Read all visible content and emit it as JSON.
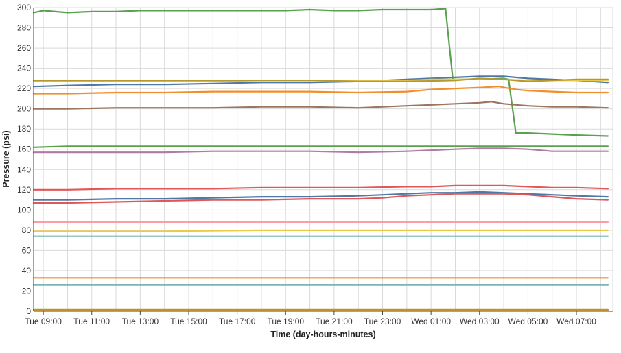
{
  "chart_data": {
    "type": "line",
    "title": "",
    "xlabel": "Time (day-hours-minutes)",
    "ylabel": "Pressure (psi)",
    "x_unit": "hours (Tue 09:00 = 9, Wed 01:00 = 25)",
    "xlim": [
      8.6,
      32.5
    ],
    "ylim": [
      0,
      300
    ],
    "y_ticks": [
      0,
      20,
      40,
      60,
      80,
      100,
      120,
      140,
      160,
      180,
      200,
      220,
      240,
      260,
      280,
      300
    ],
    "x_ticks": [
      {
        "value": 9,
        "label": "Tue 09:00"
      },
      {
        "value": 11,
        "label": "Tue 11:00"
      },
      {
        "value": 13,
        "label": "Tue 13:00"
      },
      {
        "value": 15,
        "label": "Tue 15:00"
      },
      {
        "value": 17,
        "label": "Tue 17:00"
      },
      {
        "value": 19,
        "label": "Tue 19:00"
      },
      {
        "value": 21,
        "label": "Tue 21:00"
      },
      {
        "value": 23,
        "label": "Tue 23:00"
      },
      {
        "value": 25,
        "label": "Wed 01:00"
      },
      {
        "value": 27,
        "label": "Wed 03:00"
      },
      {
        "value": 29,
        "label": "Wed 05:00"
      },
      {
        "value": 31,
        "label": "Wed 07:00"
      }
    ],
    "grid": true,
    "legend": "none",
    "series": [
      {
        "color": "#59a14f",
        "points": [
          [
            8.6,
            295
          ],
          [
            9,
            297
          ],
          [
            10,
            295
          ],
          [
            11,
            296
          ],
          [
            12,
            296
          ],
          [
            13,
            297
          ],
          [
            14,
            297
          ],
          [
            15,
            297
          ],
          [
            16,
            297
          ],
          [
            17,
            297
          ],
          [
            18,
            297
          ],
          [
            19,
            297
          ],
          [
            20,
            298
          ],
          [
            21,
            297
          ],
          [
            22,
            297
          ],
          [
            23,
            298
          ],
          [
            24,
            298
          ],
          [
            25,
            298
          ],
          [
            25.6,
            299
          ],
          [
            25.9,
            229
          ],
          [
            27,
            229
          ],
          [
            28,
            230
          ],
          [
            28.2,
            229
          ],
          [
            28.5,
            176
          ],
          [
            29,
            176
          ],
          [
            30,
            175
          ],
          [
            31,
            174
          ],
          [
            32.3,
            173
          ]
        ]
      },
      {
        "color": "#59a14f",
        "points": [
          [
            8.6,
            162
          ],
          [
            10,
            163
          ],
          [
            12,
            163
          ],
          [
            14,
            163
          ],
          [
            16,
            163
          ],
          [
            18,
            163
          ],
          [
            20,
            163
          ],
          [
            22,
            163
          ],
          [
            24,
            163
          ],
          [
            26,
            163
          ],
          [
            28,
            163
          ],
          [
            30,
            163
          ],
          [
            32.3,
            163
          ]
        ]
      },
      {
        "color": "#4e79a7",
        "points": [
          [
            8.6,
            222
          ],
          [
            10,
            223
          ],
          [
            12,
            224
          ],
          [
            14,
            224
          ],
          [
            16,
            225
          ],
          [
            18,
            226
          ],
          [
            20,
            226
          ],
          [
            22,
            227
          ],
          [
            23,
            228
          ],
          [
            24,
            229
          ],
          [
            25,
            230
          ],
          [
            26,
            231
          ],
          [
            27,
            232
          ],
          [
            28,
            232
          ],
          [
            29,
            230
          ],
          [
            30,
            229
          ],
          [
            31,
            228
          ],
          [
            32.3,
            226
          ]
        ]
      },
      {
        "color": "#edc948",
        "points": [
          [
            8.6,
            227
          ],
          [
            10,
            227
          ],
          [
            12,
            227
          ],
          [
            14,
            227
          ],
          [
            16,
            227
          ],
          [
            18,
            228
          ],
          [
            20,
            228
          ],
          [
            22,
            228
          ],
          [
            24,
            228
          ],
          [
            25,
            229
          ],
          [
            26,
            229
          ],
          [
            27,
            229
          ],
          [
            28,
            229
          ],
          [
            29,
            228
          ],
          [
            30,
            228
          ],
          [
            31,
            228
          ],
          [
            32.3,
            228
          ]
        ]
      },
      {
        "color": "#b6992d",
        "points": [
          [
            8.6,
            228
          ],
          [
            10,
            228
          ],
          [
            12,
            228
          ],
          [
            14,
            228
          ],
          [
            16,
            228
          ],
          [
            18,
            228
          ],
          [
            20,
            228
          ],
          [
            22,
            227
          ],
          [
            24,
            227
          ],
          [
            26,
            228
          ],
          [
            27,
            230
          ],
          [
            28,
            229
          ],
          [
            29,
            227
          ],
          [
            30,
            228
          ],
          [
            31,
            229
          ],
          [
            32.3,
            229
          ]
        ]
      },
      {
        "color": "#f28e2b",
        "points": [
          [
            8.6,
            215
          ],
          [
            10,
            215
          ],
          [
            12,
            216
          ],
          [
            14,
            216
          ],
          [
            16,
            217
          ],
          [
            18,
            217
          ],
          [
            20,
            217
          ],
          [
            22,
            216
          ],
          [
            24,
            217
          ],
          [
            25,
            219
          ],
          [
            26,
            220
          ],
          [
            27,
            221
          ],
          [
            27.8,
            222
          ],
          [
            28.5,
            219
          ],
          [
            29,
            218
          ],
          [
            30,
            217
          ],
          [
            31,
            216
          ],
          [
            32.3,
            216
          ]
        ]
      },
      {
        "color": "#9c755f",
        "points": [
          [
            8.6,
            200
          ],
          [
            10,
            200
          ],
          [
            12,
            201
          ],
          [
            14,
            201
          ],
          [
            16,
            201
          ],
          [
            18,
            202
          ],
          [
            20,
            202
          ],
          [
            22,
            201
          ],
          [
            24,
            203
          ],
          [
            25,
            204
          ],
          [
            26,
            205
          ],
          [
            27,
            206
          ],
          [
            27.5,
            207
          ],
          [
            28,
            205
          ],
          [
            29,
            203
          ],
          [
            30,
            202
          ],
          [
            31,
            202
          ],
          [
            32.3,
            201
          ]
        ]
      },
      {
        "color": "#b07aa1",
        "points": [
          [
            8.6,
            157
          ],
          [
            10,
            157
          ],
          [
            12,
            157
          ],
          [
            14,
            157
          ],
          [
            16,
            158
          ],
          [
            18,
            158
          ],
          [
            20,
            158
          ],
          [
            22,
            157
          ],
          [
            24,
            158
          ],
          [
            25,
            159
          ],
          [
            26,
            160
          ],
          [
            27,
            161
          ],
          [
            28,
            161
          ],
          [
            29,
            160
          ],
          [
            30,
            158
          ],
          [
            31,
            158
          ],
          [
            32.3,
            158
          ]
        ]
      },
      {
        "color": "#e15759",
        "points": [
          [
            8.6,
            120
          ],
          [
            10,
            120
          ],
          [
            12,
            121
          ],
          [
            14,
            121
          ],
          [
            16,
            121
          ],
          [
            18,
            122
          ],
          [
            20,
            122
          ],
          [
            22,
            122
          ],
          [
            24,
            123
          ],
          [
            25,
            123
          ],
          [
            26,
            124
          ],
          [
            27,
            124
          ],
          [
            28,
            124
          ],
          [
            29,
            123
          ],
          [
            30,
            122
          ],
          [
            31,
            122
          ],
          [
            32.3,
            121
          ]
        ]
      },
      {
        "color": "#4e79a7",
        "points": [
          [
            8.6,
            110
          ],
          [
            10,
            110
          ],
          [
            12,
            111
          ],
          [
            14,
            111
          ],
          [
            16,
            112
          ],
          [
            18,
            113
          ],
          [
            20,
            113
          ],
          [
            22,
            114
          ],
          [
            23,
            115
          ],
          [
            24,
            116
          ],
          [
            25,
            117
          ],
          [
            26,
            117
          ],
          [
            27,
            118
          ],
          [
            28,
            117
          ],
          [
            29,
            116
          ],
          [
            30,
            115
          ],
          [
            31,
            114
          ],
          [
            32.3,
            113
          ]
        ]
      },
      {
        "color": "#e15759",
        "points": [
          [
            8.6,
            107
          ],
          [
            10,
            107
          ],
          [
            12,
            108
          ],
          [
            14,
            109
          ],
          [
            16,
            110
          ],
          [
            18,
            110
          ],
          [
            20,
            111
          ],
          [
            22,
            111
          ],
          [
            23,
            112
          ],
          [
            24,
            114
          ],
          [
            25,
            115
          ],
          [
            26,
            116
          ],
          [
            27,
            116
          ],
          [
            28,
            116
          ],
          [
            29,
            115
          ],
          [
            30,
            113
          ],
          [
            31,
            111
          ],
          [
            32.3,
            110
          ]
        ]
      },
      {
        "color": "#ff9da7",
        "points": [
          [
            8.6,
            88
          ],
          [
            12,
            88
          ],
          [
            16,
            88
          ],
          [
            20,
            88
          ],
          [
            24,
            88
          ],
          [
            28,
            88
          ],
          [
            32.3,
            88
          ]
        ]
      },
      {
        "color": "#edc948",
        "points": [
          [
            8.6,
            79
          ],
          [
            10,
            79
          ],
          [
            14,
            79
          ],
          [
            18,
            80
          ],
          [
            22,
            80
          ],
          [
            26,
            80
          ],
          [
            28,
            80
          ],
          [
            30,
            80
          ],
          [
            32.3,
            80
          ]
        ]
      },
      {
        "color": "#76b7b2",
        "points": [
          [
            8.6,
            74
          ],
          [
            12,
            74
          ],
          [
            16,
            74
          ],
          [
            20,
            74
          ],
          [
            24,
            74
          ],
          [
            28,
            74
          ],
          [
            32.3,
            74
          ]
        ]
      },
      {
        "color": "#f28e2b",
        "points": [
          [
            8.6,
            33
          ],
          [
            12,
            33
          ],
          [
            16,
            33
          ],
          [
            20,
            33
          ],
          [
            24,
            33
          ],
          [
            28,
            33
          ],
          [
            32.3,
            33
          ]
        ]
      },
      {
        "color": "#76b7b2",
        "points": [
          [
            8.6,
            26
          ],
          [
            12,
            26
          ],
          [
            16,
            26
          ],
          [
            20,
            26
          ],
          [
            24,
            26
          ],
          [
            28,
            26
          ],
          [
            32.3,
            26
          ]
        ]
      },
      {
        "color": "#e15759",
        "points": [
          [
            8.6,
            1
          ],
          [
            12,
            1
          ],
          [
            16,
            1
          ],
          [
            20,
            1
          ],
          [
            24,
            1
          ],
          [
            28,
            1
          ],
          [
            32.3,
            1
          ]
        ]
      },
      {
        "color": "#b6992d",
        "points": [
          [
            8.6,
            1.5
          ],
          [
            16,
            1.5
          ],
          [
            24,
            1.5
          ],
          [
            32.3,
            1.5
          ]
        ]
      }
    ]
  }
}
